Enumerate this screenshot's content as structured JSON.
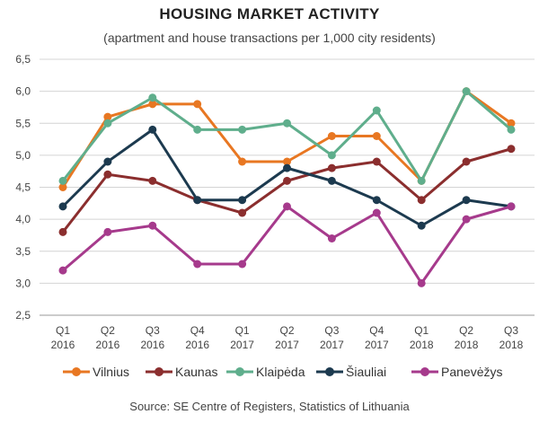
{
  "chart_data": {
    "type": "line",
    "title": "HOUSING MARKET ACTIVITY",
    "subtitle": "(apartment and house transactions per 1,000 city residents)",
    "source": "Source: SE Centre of Registers, Statistics of Lithuania",
    "categories": [
      [
        "Q1",
        "2016"
      ],
      [
        "Q2",
        "2016"
      ],
      [
        "Q3",
        "2016"
      ],
      [
        "Q4",
        "2016"
      ],
      [
        "Q1",
        "2017"
      ],
      [
        "Q2",
        "2017"
      ],
      [
        "Q3",
        "2017"
      ],
      [
        "Q4",
        "2017"
      ],
      [
        "Q1",
        "2018"
      ],
      [
        "Q2",
        "2018"
      ],
      [
        "Q3",
        "2018"
      ]
    ],
    "ylim": [
      2.5,
      6.5
    ],
    "yticks": [
      "2,5",
      "3,0",
      "3,5",
      "4,0",
      "4,5",
      "5,0",
      "5,5",
      "6,0",
      "6,5"
    ],
    "grid": true,
    "legend_position": "bottom",
    "series": [
      {
        "name": "Vilnius",
        "color": "#E87722",
        "values": [
          4.5,
          5.6,
          5.8,
          5.8,
          4.9,
          4.9,
          5.3,
          5.3,
          4.6,
          6.0,
          5.5
        ]
      },
      {
        "name": "Kaunas",
        "color": "#8B2E2E",
        "values": [
          3.8,
          4.7,
          4.6,
          4.3,
          4.1,
          4.6,
          4.8,
          4.9,
          4.3,
          4.9,
          5.1
        ]
      },
      {
        "name": "Klaipėda",
        "color": "#5FAE8C",
        "values": [
          4.6,
          5.5,
          5.9,
          5.4,
          5.4,
          5.5,
          5.0,
          5.7,
          4.6,
          6.0,
          5.4
        ]
      },
      {
        "name": "Šiauliai",
        "color": "#1C3A4F",
        "values": [
          4.2,
          4.9,
          5.4,
          4.3,
          4.3,
          4.8,
          4.6,
          4.3,
          3.9,
          4.3,
          4.2
        ]
      },
      {
        "name": "Panevėžys",
        "color": "#A63A8C",
        "values": [
          3.2,
          3.8,
          3.9,
          3.3,
          3.3,
          4.2,
          3.7,
          4.1,
          3.0,
          4.0,
          4.2
        ]
      }
    ]
  }
}
